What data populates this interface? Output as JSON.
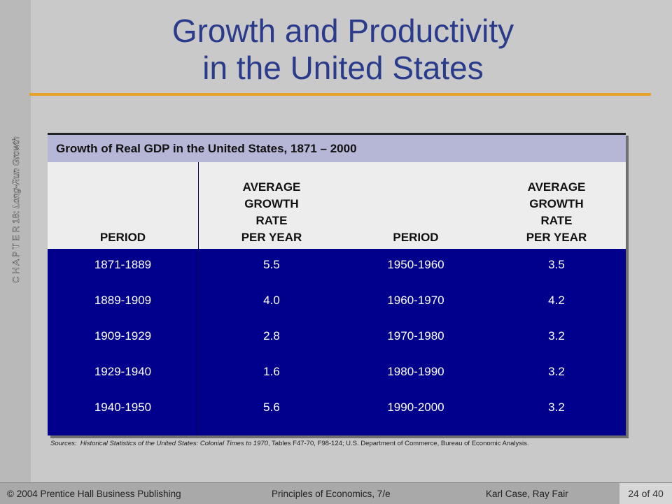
{
  "slide": {
    "side_label_prefix": "C H A P T E R 18:",
    "side_label_topic": "Long-Run Growth",
    "title_line1": "Growth and Productivity",
    "title_line2": "in the United States"
  },
  "table": {
    "caption": "Growth of Real GDP in the United States, 1871 – 2000",
    "headers": {
      "period": "PERIOD",
      "rate_line1": "AVERAGE",
      "rate_line2": "GROWTH",
      "rate_line3": "RATE",
      "rate_line4": "PER YEAR"
    },
    "left_rows": [
      {
        "period": "1871-1889",
        "rate": "5.5"
      },
      {
        "period": "1889-1909",
        "rate": "4.0"
      },
      {
        "period": "1909-1929",
        "rate": "2.8"
      },
      {
        "period": "1929-1940",
        "rate": "1.6"
      },
      {
        "period": "1940-1950",
        "rate": "5.6"
      }
    ],
    "right_rows": [
      {
        "period": "1950-1960",
        "rate": "3.5"
      },
      {
        "period": "1960-1970",
        "rate": "4.2"
      },
      {
        "period": "1970-1980",
        "rate": "3.2"
      },
      {
        "period": "1980-1990",
        "rate": "3.2"
      },
      {
        "period": "1990-2000",
        "rate": "3.2"
      }
    ]
  },
  "source": {
    "label": "Sources:",
    "italic_part": "Historical Statistics of the United States:  Colonial Times to 1970",
    "rest": ", Tables F47-70, F98-124; U.S. Department of Commerce, Bureau of Economic Analysis."
  },
  "footer": {
    "publisher": "© 2004 Prentice Hall Business Publishing",
    "book": "Principles of Economics, 7/e",
    "authors": "Karl Case, Ray Fair",
    "page": "24 of 40"
  },
  "colors": {
    "title": "#2b3b8c",
    "accent_rule": "#e6a128",
    "table_body": "#00008c",
    "caption_bar": "#b6b6d6"
  }
}
